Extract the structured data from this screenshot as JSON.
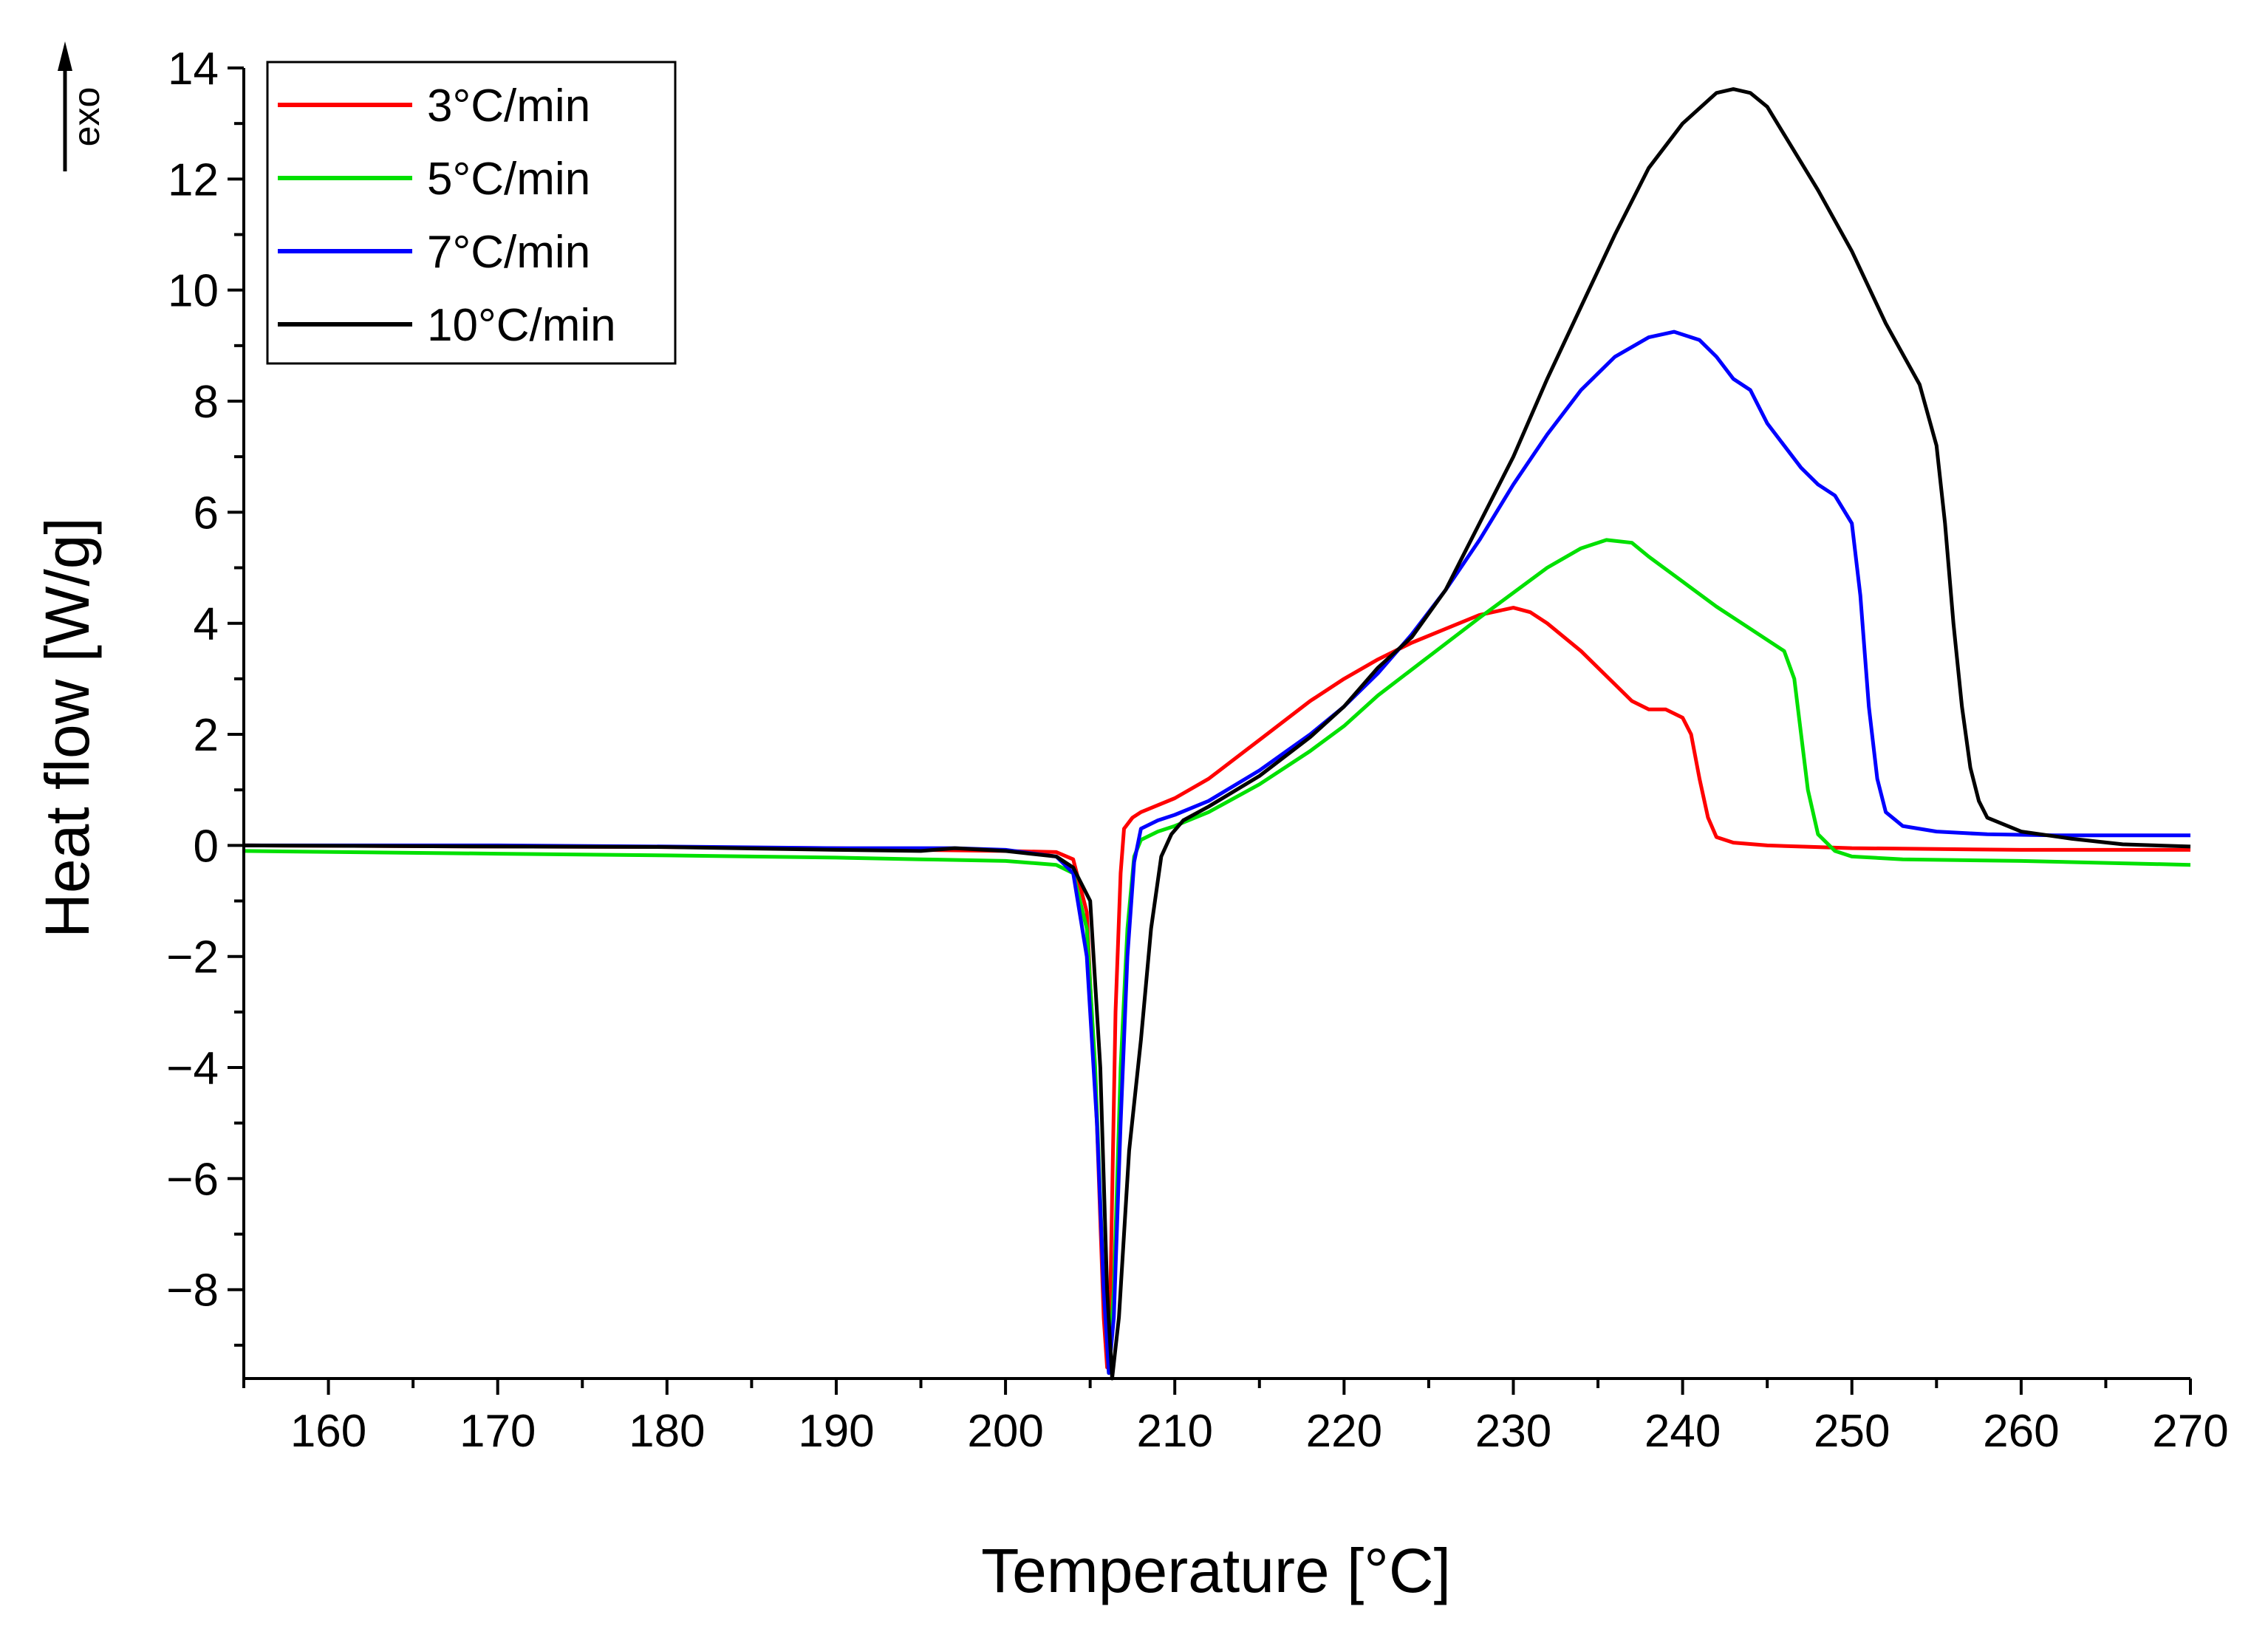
{
  "chart_data": {
    "type": "line",
    "title": "",
    "xlabel": "Temperature [°C]",
    "ylabel": "Heat flow [W/g]",
    "annotation": "exo",
    "xlim": [
      155,
      270
    ],
    "ylim": [
      -9.6,
      14
    ],
    "x_ticks": [
      160,
      170,
      180,
      190,
      200,
      210,
      220,
      230,
      240,
      250,
      260,
      270
    ],
    "y_ticks": [
      14,
      12,
      10,
      8,
      6,
      4,
      2,
      0,
      -2,
      -4,
      -6,
      -8
    ],
    "y_tick_labels": [
      "14",
      "12",
      "10",
      "8",
      "6",
      "4",
      "2",
      "0",
      "−2",
      "−4",
      "−6",
      "−8"
    ],
    "legend_position": "top-left",
    "series": [
      {
        "name": "3°C/min",
        "color": "#ff0000",
        "points": [
          [
            155,
            0
          ],
          [
            170,
            -0.02
          ],
          [
            180,
            -0.03
          ],
          [
            190,
            -0.05
          ],
          [
            195,
            -0.08
          ],
          [
            200,
            -0.1
          ],
          [
            203,
            -0.12
          ],
          [
            204,
            -0.25
          ],
          [
            204.8,
            -1.2
          ],
          [
            205.4,
            -5
          ],
          [
            205.8,
            -8.5
          ],
          [
            206,
            -9.4
          ],
          [
            206.2,
            -8
          ],
          [
            206.5,
            -3
          ],
          [
            206.8,
            -0.5
          ],
          [
            207,
            0.3
          ],
          [
            207.5,
            0.5
          ],
          [
            208,
            0.6
          ],
          [
            210,
            0.85
          ],
          [
            212,
            1.2
          ],
          [
            215,
            1.9
          ],
          [
            218,
            2.6
          ],
          [
            220,
            3.0
          ],
          [
            222,
            3.35
          ],
          [
            224,
            3.65
          ],
          [
            226,
            3.9
          ],
          [
            228,
            4.15
          ],
          [
            230,
            4.28
          ],
          [
            231,
            4.2
          ],
          [
            232,
            4.0
          ],
          [
            234,
            3.5
          ],
          [
            236,
            2.9
          ],
          [
            237,
            2.6
          ],
          [
            238,
            2.45
          ],
          [
            239,
            2.45
          ],
          [
            240,
            2.3
          ],
          [
            240.5,
            2.0
          ],
          [
            241,
            1.2
          ],
          [
            241.5,
            0.5
          ],
          [
            242,
            0.15
          ],
          [
            243,
            0.05
          ],
          [
            245,
            0.0
          ],
          [
            250,
            -0.05
          ],
          [
            260,
            -0.08
          ],
          [
            270,
            -0.08
          ]
        ]
      },
      {
        "name": "5°C/min",
        "color": "#00e000",
        "points": [
          [
            155,
            -0.1
          ],
          [
            170,
            -0.15
          ],
          [
            180,
            -0.18
          ],
          [
            190,
            -0.22
          ],
          [
            195,
            -0.25
          ],
          [
            200,
            -0.28
          ],
          [
            203,
            -0.35
          ],
          [
            204,
            -0.5
          ],
          [
            204.8,
            -1.5
          ],
          [
            205.3,
            -4
          ],
          [
            205.8,
            -8
          ],
          [
            206.1,
            -9.5
          ],
          [
            206.4,
            -8
          ],
          [
            206.8,
            -4
          ],
          [
            207.2,
            -1.5
          ],
          [
            207.6,
            -0.2
          ],
          [
            208,
            0.1
          ],
          [
            209,
            0.25
          ],
          [
            210,
            0.35
          ],
          [
            212,
            0.6
          ],
          [
            215,
            1.1
          ],
          [
            218,
            1.7
          ],
          [
            220,
            2.15
          ],
          [
            222,
            2.7
          ],
          [
            225,
            3.4
          ],
          [
            228,
            4.1
          ],
          [
            230,
            4.55
          ],
          [
            232,
            5.0
          ],
          [
            234,
            5.35
          ],
          [
            235.5,
            5.5
          ],
          [
            237,
            5.45
          ],
          [
            238,
            5.2
          ],
          [
            240,
            4.75
          ],
          [
            242,
            4.3
          ],
          [
            244,
            3.9
          ],
          [
            246,
            3.5
          ],
          [
            246.6,
            3.0
          ],
          [
            247,
            2.0
          ],
          [
            247.4,
            1.0
          ],
          [
            248,
            0.2
          ],
          [
            249,
            -0.1
          ],
          [
            250,
            -0.2
          ],
          [
            253,
            -0.25
          ],
          [
            260,
            -0.28
          ],
          [
            270,
            -0.35
          ]
        ]
      },
      {
        "name": "7°C/min",
        "color": "#0000ff",
        "points": [
          [
            155,
            0
          ],
          [
            170,
            0
          ],
          [
            180,
            -0.02
          ],
          [
            190,
            -0.05
          ],
          [
            195,
            -0.05
          ],
          [
            197,
            -0.05
          ],
          [
            200,
            -0.08
          ],
          [
            203,
            -0.2
          ],
          [
            204,
            -0.5
          ],
          [
            204.8,
            -2
          ],
          [
            205.4,
            -5
          ],
          [
            205.8,
            -8
          ],
          [
            206.1,
            -9.5
          ],
          [
            206.4,
            -8.5
          ],
          [
            206.8,
            -5
          ],
          [
            207.2,
            -2
          ],
          [
            207.6,
            -0.3
          ],
          [
            208,
            0.3
          ],
          [
            209,
            0.45
          ],
          [
            210,
            0.55
          ],
          [
            212,
            0.8
          ],
          [
            215,
            1.35
          ],
          [
            218,
            2.0
          ],
          [
            220,
            2.5
          ],
          [
            222,
            3.1
          ],
          [
            224,
            3.8
          ],
          [
            226,
            4.6
          ],
          [
            228,
            5.5
          ],
          [
            230,
            6.5
          ],
          [
            232,
            7.4
          ],
          [
            234,
            8.2
          ],
          [
            236,
            8.8
          ],
          [
            238,
            9.15
          ],
          [
            239.5,
            9.25
          ],
          [
            241,
            9.1
          ],
          [
            242,
            8.8
          ],
          [
            243,
            8.4
          ],
          [
            244,
            8.2
          ],
          [
            245,
            7.6
          ],
          [
            246,
            7.2
          ],
          [
            247,
            6.8
          ],
          [
            248,
            6.5
          ],
          [
            249,
            6.3
          ],
          [
            250,
            5.8
          ],
          [
            250.5,
            4.5
          ],
          [
            251,
            2.5
          ],
          [
            251.5,
            1.2
          ],
          [
            252,
            0.6
          ],
          [
            253,
            0.35
          ],
          [
            255,
            0.25
          ],
          [
            258,
            0.2
          ],
          [
            262,
            0.18
          ],
          [
            270,
            0.18
          ]
        ]
      },
      {
        "name": "10°C/min",
        "color": "#000000",
        "points": [
          [
            155,
            0
          ],
          [
            170,
            -0.02
          ],
          [
            180,
            -0.03
          ],
          [
            190,
            -0.08
          ],
          [
            195,
            -0.1
          ],
          [
            197,
            -0.05
          ],
          [
            200,
            -0.1
          ],
          [
            203,
            -0.2
          ],
          [
            204,
            -0.4
          ],
          [
            205,
            -1
          ],
          [
            205.6,
            -4
          ],
          [
            206,
            -8
          ],
          [
            206.3,
            -9.6
          ],
          [
            206.7,
            -8.5
          ],
          [
            207.3,
            -5.5
          ],
          [
            208,
            -3.5
          ],
          [
            208.6,
            -1.5
          ],
          [
            209.2,
            -0.2
          ],
          [
            209.8,
            0.2
          ],
          [
            210.5,
            0.45
          ],
          [
            212,
            0.7
          ],
          [
            215,
            1.25
          ],
          [
            218,
            1.95
          ],
          [
            220,
            2.5
          ],
          [
            222,
            3.2
          ],
          [
            224,
            3.75
          ],
          [
            226,
            4.6
          ],
          [
            228,
            5.8
          ],
          [
            230,
            7.0
          ],
          [
            232,
            8.4
          ],
          [
            234,
            9.7
          ],
          [
            236,
            11.0
          ],
          [
            238,
            12.2
          ],
          [
            240,
            13.0
          ],
          [
            242,
            13.55
          ],
          [
            243,
            13.62
          ],
          [
            244,
            13.55
          ],
          [
            245,
            13.3
          ],
          [
            246,
            12.8
          ],
          [
            248,
            11.8
          ],
          [
            250,
            10.7
          ],
          [
            252,
            9.4
          ],
          [
            254,
            8.3
          ],
          [
            255,
            7.2
          ],
          [
            255.5,
            5.8
          ],
          [
            256,
            4.0
          ],
          [
            256.5,
            2.5
          ],
          [
            257,
            1.4
          ],
          [
            257.5,
            0.8
          ],
          [
            258,
            0.5
          ],
          [
            260,
            0.25
          ],
          [
            263,
            0.12
          ],
          [
            266,
            0.02
          ],
          [
            270,
            -0.02
          ]
        ]
      }
    ]
  }
}
